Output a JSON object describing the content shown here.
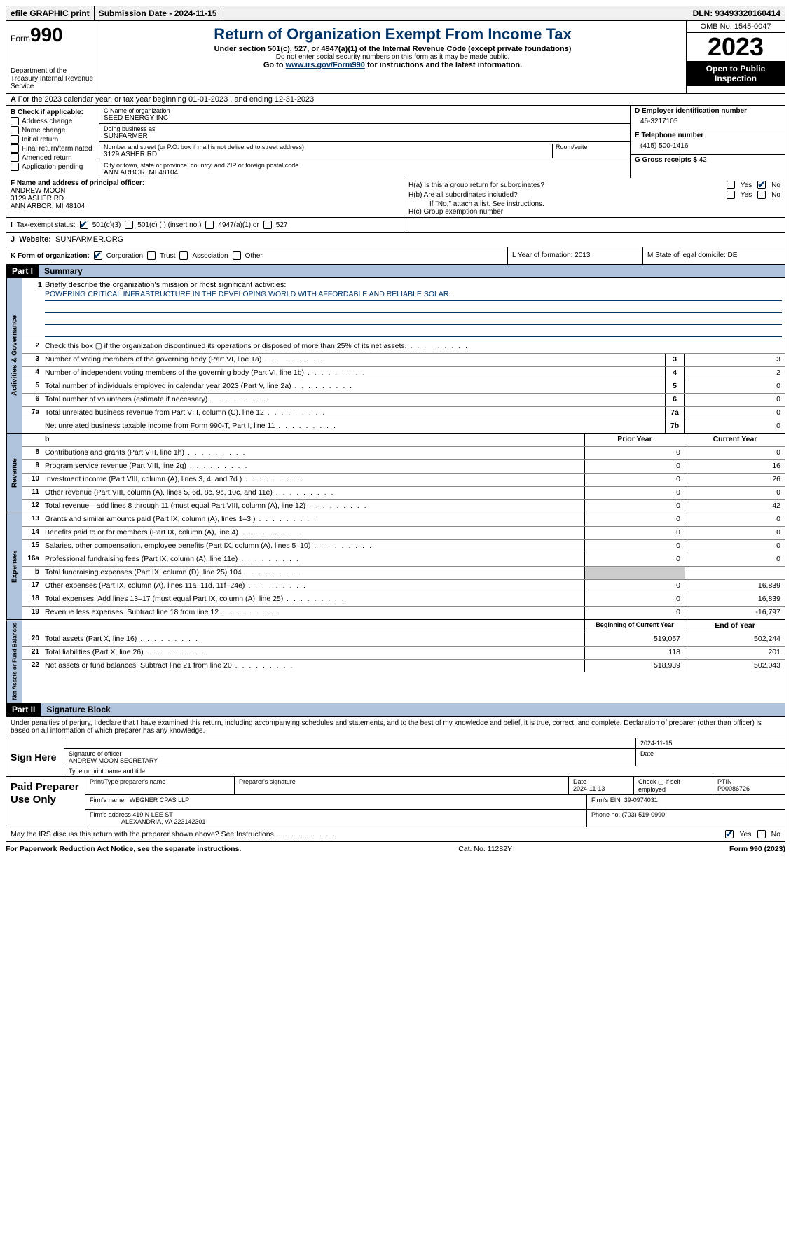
{
  "top_bar": {
    "efile": "efile GRAPHIC print",
    "submission": "Submission Date - 2024-11-15",
    "dln": "DLN: 93493320160414"
  },
  "header": {
    "form_label": "Form",
    "form_number": "990",
    "dept": "Department of the Treasury Internal Revenue Service",
    "title": "Return of Organization Exempt From Income Tax",
    "subtitle": "Under section 501(c), 527, or 4947(a)(1) of the Internal Revenue Code (except private foundations)",
    "note1": "Do not enter social security numbers on this form as it may be made public.",
    "note2_prefix": "Go to ",
    "note2_link": "www.irs.gov/Form990",
    "note2_suffix": " for instructions and the latest information.",
    "omb": "OMB No. 1545-0047",
    "year": "2023",
    "inspection": "Open to Public Inspection"
  },
  "row_a": "For the 2023 calendar year, or tax year beginning 01-01-2023   , and ending 12-31-2023",
  "col_b": {
    "label": "B Check if applicable:",
    "items": [
      "Address change",
      "Name change",
      "Initial return",
      "Final return/terminated",
      "Amended return",
      "Application pending"
    ]
  },
  "col_c": {
    "name_label": "C Name of organization",
    "name": "SEED ENERGY INC",
    "dba_label": "Doing business as",
    "dba": "SUNFARMER",
    "street_label": "Number and street (or P.O. box if mail is not delivered to street address)",
    "room_label": "Room/suite",
    "street": "3129 ASHER RD",
    "city_label": "City or town, state or province, country, and ZIP or foreign postal code",
    "city": "ANN ARBOR, MI  48104"
  },
  "col_de": {
    "d_label": "D Employer identification number",
    "d_val": "46-3217105",
    "e_label": "E Telephone number",
    "e_val": "(415) 500-1416",
    "g_label": "G Gross receipts $",
    "g_val": "42"
  },
  "row_f": {
    "label": "F  Name and address of principal officer:",
    "name": "ANDREW MOON",
    "street": "3129 ASHER RD",
    "city": "ANN ARBOR, MI  48104"
  },
  "row_h": {
    "ha": "H(a)  Is this a group return for subordinates?",
    "hb": "H(b)  Are all subordinates included?",
    "hb_note": "If \"No,\" attach a list. See instructions.",
    "hc": "H(c)  Group exemption number"
  },
  "row_i": {
    "label": "Tax-exempt status:",
    "opt1": "501(c)(3)",
    "opt2": "501(c) (  ) (insert no.)",
    "opt3": "4947(a)(1) or",
    "opt4": "527"
  },
  "row_j": {
    "label": "Website:",
    "val": "SUNFARMER.ORG"
  },
  "row_k": {
    "label": "K Form of organization:",
    "opts": [
      "Corporation",
      "Trust",
      "Association",
      "Other"
    ]
  },
  "row_l": "L Year of formation: 2013",
  "row_m": "M State of legal domicile: DE",
  "part1": {
    "header": "Part I",
    "title": "Summary"
  },
  "mission": {
    "label": "Briefly describe the organization's mission or most significant activities:",
    "text": "POWERING CRITICAL INFRASTRUCTURE IN THE DEVELOPING WORLD WITH AFFORDABLE AND RELIABLE SOLAR."
  },
  "gov_lines": [
    {
      "n": "2",
      "desc": "Check this box ▢ if the organization discontinued its operations or disposed of more than 25% of its net assets."
    },
    {
      "n": "3",
      "desc": "Number of voting members of the governing body (Part VI, line 1a)",
      "box": "3",
      "v": "3"
    },
    {
      "n": "4",
      "desc": "Number of independent voting members of the governing body (Part VI, line 1b)",
      "box": "4",
      "v": "2"
    },
    {
      "n": "5",
      "desc": "Total number of individuals employed in calendar year 2023 (Part V, line 2a)",
      "box": "5",
      "v": "0"
    },
    {
      "n": "6",
      "desc": "Total number of volunteers (estimate if necessary)",
      "box": "6",
      "v": "0"
    },
    {
      "n": "7a",
      "desc": "Total unrelated business revenue from Part VIII, column (C), line 12",
      "box": "7a",
      "v": "0"
    },
    {
      "n": "",
      "desc": "Net unrelated business taxable income from Form 990-T, Part I, line 11",
      "box": "7b",
      "v": "0"
    }
  ],
  "rev_header": {
    "c1": "Prior Year",
    "c2": "Current Year"
  },
  "rev_lines": [
    {
      "n": "8",
      "desc": "Contributions and grants (Part VIII, line 1h)",
      "v1": "0",
      "v2": "0"
    },
    {
      "n": "9",
      "desc": "Program service revenue (Part VIII, line 2g)",
      "v1": "0",
      "v2": "16"
    },
    {
      "n": "10",
      "desc": "Investment income (Part VIII, column (A), lines 3, 4, and 7d )",
      "v1": "0",
      "v2": "26"
    },
    {
      "n": "11",
      "desc": "Other revenue (Part VIII, column (A), lines 5, 6d, 8c, 9c, 10c, and 11e)",
      "v1": "0",
      "v2": "0"
    },
    {
      "n": "12",
      "desc": "Total revenue—add lines 8 through 11 (must equal Part VIII, column (A), line 12)",
      "v1": "0",
      "v2": "42"
    }
  ],
  "exp_lines": [
    {
      "n": "13",
      "desc": "Grants and similar amounts paid (Part IX, column (A), lines 1–3 )",
      "v1": "0",
      "v2": "0"
    },
    {
      "n": "14",
      "desc": "Benefits paid to or for members (Part IX, column (A), line 4)",
      "v1": "0",
      "v2": "0"
    },
    {
      "n": "15",
      "desc": "Salaries, other compensation, employee benefits (Part IX, column (A), lines 5–10)",
      "v1": "0",
      "v2": "0"
    },
    {
      "n": "16a",
      "desc": "Professional fundraising fees (Part IX, column (A), line 11e)",
      "v1": "0",
      "v2": "0"
    },
    {
      "n": "b",
      "desc": "Total fundraising expenses (Part IX, column (D), line 25) 104",
      "shaded": true
    },
    {
      "n": "17",
      "desc": "Other expenses (Part IX, column (A), lines 11a–11d, 11f–24e)",
      "v1": "0",
      "v2": "16,839"
    },
    {
      "n": "18",
      "desc": "Total expenses. Add lines 13–17 (must equal Part IX, column (A), line 25)",
      "v1": "0",
      "v2": "16,839"
    },
    {
      "n": "19",
      "desc": "Revenue less expenses. Subtract line 18 from line 12",
      "v1": "0",
      "v2": "-16,797"
    }
  ],
  "net_header": {
    "c1": "Beginning of Current Year",
    "c2": "End of Year"
  },
  "net_lines": [
    {
      "n": "20",
      "desc": "Total assets (Part X, line 16)",
      "v1": "519,057",
      "v2": "502,244"
    },
    {
      "n": "21",
      "desc": "Total liabilities (Part X, line 26)",
      "v1": "118",
      "v2": "201"
    },
    {
      "n": "22",
      "desc": "Net assets or fund balances. Subtract line 21 from line 20",
      "v1": "518,939",
      "v2": "502,043"
    }
  ],
  "vtabs": {
    "gov": "Activities & Governance",
    "rev": "Revenue",
    "exp": "Expenses",
    "net": "Net Assets or Fund Balances"
  },
  "part2": {
    "header": "Part II",
    "title": "Signature Block"
  },
  "sig_declare": "Under penalties of perjury, I declare that I have examined this return, including accompanying schedules and statements, and to the best of my knowledge and belief, it is true, correct, and complete. Declaration of preparer (other than officer) is based on all information of which preparer has any knowledge.",
  "sign_here": {
    "label": "Sign Here",
    "date": "2024-11-15",
    "sig_label": "Signature of officer",
    "name": "ANDREW MOON  SECRETARY",
    "name_label": "Type or print name and title",
    "date_label": "Date"
  },
  "paid_prep": {
    "label": "Paid Preparer Use Only",
    "h1": "Print/Type preparer's name",
    "h2": "Preparer's signature",
    "h3_label": "Date",
    "h3": "2024-11-13",
    "h4": "Check ▢ if self-employed",
    "h5_label": "PTIN",
    "h5": "P00086726",
    "firm_name_label": "Firm's name",
    "firm_name": "WEGNER CPAS LLP",
    "firm_ein_label": "Firm's EIN",
    "firm_ein": "39-0974031",
    "firm_addr_label": "Firm's address",
    "firm_addr1": "419 N LEE ST",
    "firm_addr2": "ALEXANDRIA, VA  223142301",
    "phone_label": "Phone no.",
    "phone": "(703) 519-0990"
  },
  "footer": {
    "q": "May the IRS discuss this return with the preparer shown above? See Instructions.",
    "yes": "Yes",
    "no": "No"
  },
  "bottom": {
    "left": "For Paperwork Reduction Act Notice, see the separate instructions.",
    "mid": "Cat. No. 11282Y",
    "right": "Form 990 (2023)"
  }
}
